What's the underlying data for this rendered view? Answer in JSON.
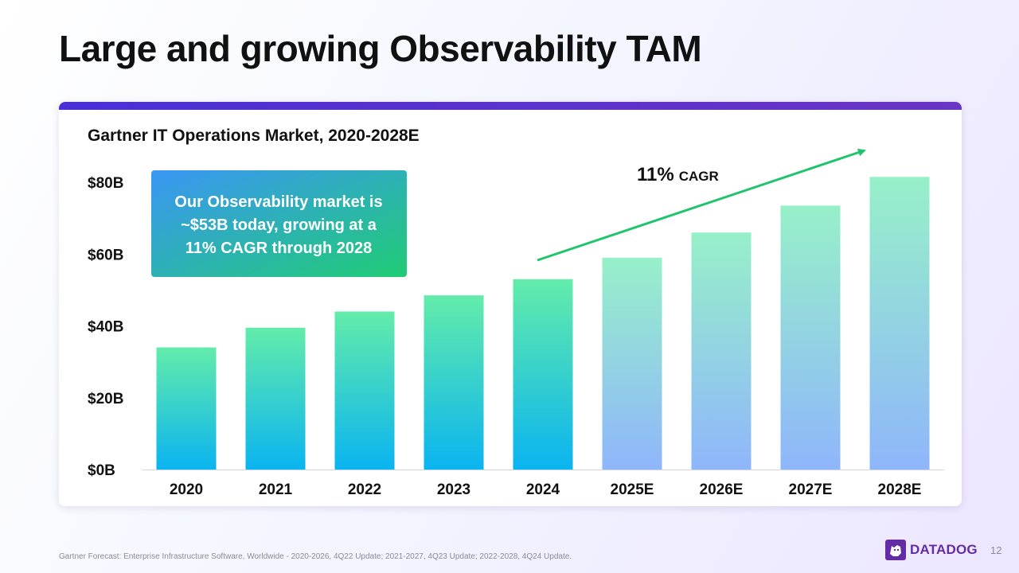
{
  "slide": {
    "title": "Large and growing Observability TAM",
    "footnote": "Gartner Forecast: Enterprise Infrastructure Software, Worldwide - 2020-2026, 4Q22 Update; 2021-2027, 4Q23 Update; 2022-2028, 4Q24 Update.",
    "page_number": "12",
    "logo_text": "DATADOG"
  },
  "colors": {
    "actual_top": "#63ecaa",
    "actual_bottom": "#0ab4f0",
    "forecast_top": "#97f0c9",
    "forecast_bottom": "#8fb6fb",
    "arrow": "#1fc46c",
    "callout_left": "#3a96f4",
    "callout_right": "#20cc75",
    "brand": "#632ca6"
  },
  "chart_data": {
    "type": "bar",
    "title": "Gartner IT Operations Market, 2020-2028E",
    "categories": [
      "2020",
      "2021",
      "2022",
      "2023",
      "2024",
      "2025E",
      "2026E",
      "2027E",
      "2028E"
    ],
    "values": [
      34,
      39.5,
      44,
      48.5,
      53,
      59,
      66,
      73.5,
      81.5
    ],
    "forecast": [
      false,
      false,
      false,
      false,
      false,
      true,
      true,
      true,
      true
    ],
    "unit": "$B",
    "ylim": [
      0,
      80
    ],
    "yticks": [
      {
        "value": 0,
        "label": "$0B"
      },
      {
        "value": 20,
        "label": "$20B"
      },
      {
        "value": 40,
        "label": "$40B"
      },
      {
        "value": 60,
        "label": "$60B"
      },
      {
        "value": 80,
        "label": "$80B"
      }
    ],
    "grid": false,
    "annotations": {
      "cagr_value": "11%",
      "cagr_label": "CAGR",
      "callout_lines": [
        "Our Observability market is",
        "~$53B today, growing at a",
        "11% CAGR through 2028"
      ]
    }
  }
}
